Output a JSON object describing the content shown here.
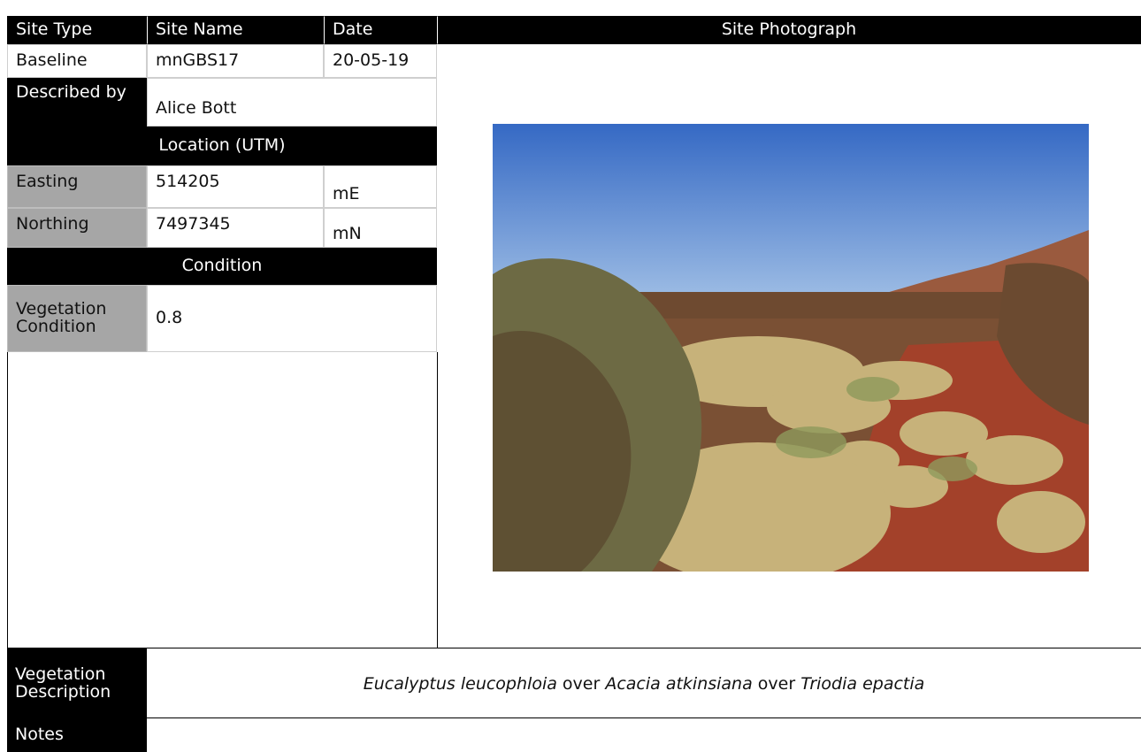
{
  "header": {
    "site_type": "Site Type",
    "site_name": "Site Name",
    "date": "Date",
    "site_photograph": "Site Photograph"
  },
  "site": {
    "type": "Baseline",
    "name": "mnGBS17",
    "date": "20-05-19"
  },
  "described_by": {
    "label": "Described by",
    "value": "Alice Bott"
  },
  "location": {
    "heading": "Location (UTM)",
    "easting": {
      "label": "Easting",
      "value": "514205",
      "unit": "mE"
    },
    "northing": {
      "label": "Northing",
      "value": "7497345",
      "unit": "mN"
    }
  },
  "condition": {
    "heading": "Condition",
    "vegetation_condition": {
      "label": "Vegetation Condition",
      "value": "0.8"
    }
  },
  "vegetation_description": {
    "label": "Vegetation Description",
    "parts": [
      {
        "text": "Eucalyptus leucophloia",
        "italic": true
      },
      {
        "text": " over ",
        "italic": false
      },
      {
        "text": "Acacia atkinsiana",
        "italic": true
      },
      {
        "text": " over ",
        "italic": false
      },
      {
        "text": "Triodia epactia",
        "italic": true
      }
    ]
  },
  "notes": {
    "label": "Notes"
  }
}
